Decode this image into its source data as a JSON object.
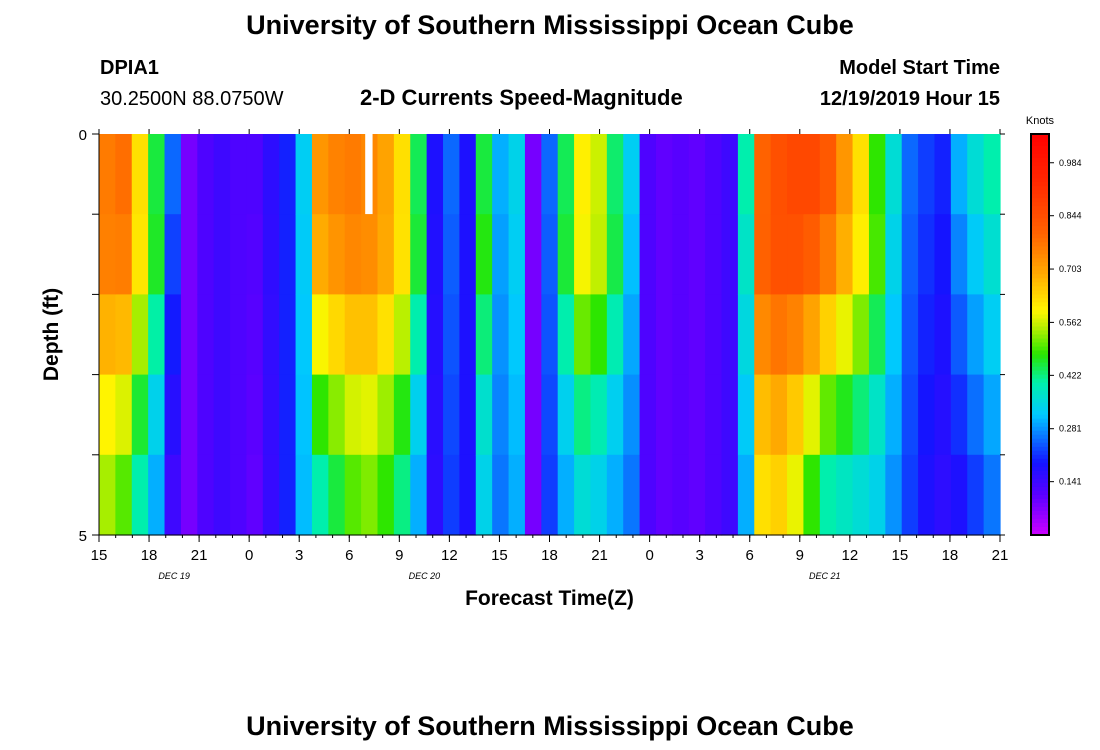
{
  "page": {
    "title_top": "University of Southern Mississippi Ocean Cube",
    "title_bottom": "University of Southern Mississippi Ocean Cube",
    "station_id": "DPIA1",
    "location": "30.2500N 88.0750W",
    "subtitle": "2-D Currents Speed-Magnitude",
    "model_start_label": "Model Start Time",
    "model_start_value": "12/19/2019 Hour 15"
  },
  "chart_data": {
    "type": "heatmap",
    "title": "2-D Currents Speed-Magnitude",
    "xlabel": "Forecast Time(Z)",
    "ylabel": "Depth (ft)",
    "ylim": [
      0,
      5
    ],
    "y_tick_labels": [
      "0",
      "5"
    ],
    "x_tick_labels": [
      "15",
      "18",
      "21",
      "0",
      "3",
      "6",
      "9",
      "12",
      "15",
      "18",
      "21",
      "0",
      "3",
      "6",
      "9",
      "12",
      "15",
      "18",
      "21"
    ],
    "x_day_labels": [
      {
        "label": "DEC 19",
        "after_tick": 1
      },
      {
        "label": "DEC 20",
        "after_tick": 6
      },
      {
        "label": "DEC 21",
        "after_tick": 14
      }
    ],
    "colorbar": {
      "unit": "Knots",
      "range": [
        0.0,
        1.06
      ],
      "tick_values": [
        "0.984",
        "0.844",
        "0.703",
        "0.562",
        "0.422",
        "0.281",
        "0.141"
      ]
    },
    "time_hours_from_start": {
      "start": 0,
      "step": 1,
      "count": 55
    },
    "depth_layers": 5,
    "speed_profile_surface_knots": [
      0.76,
      0.78,
      0.62,
      0.45,
      0.25,
      0.08,
      0.12,
      0.14,
      0.12,
      0.12,
      0.16,
      0.2,
      0.33,
      0.72,
      0.75,
      0.76,
      0.74,
      0.7,
      0.62,
      0.44,
      0.18,
      0.25,
      0.18,
      0.45,
      0.3,
      0.34,
      0.08,
      0.25,
      0.44,
      0.6,
      0.56,
      0.43,
      0.33,
      0.12,
      0.1,
      0.11,
      0.1,
      0.12,
      0.14,
      0.4,
      0.8,
      0.84,
      0.86,
      0.86,
      0.82,
      0.72,
      0.62,
      0.48,
      0.36,
      0.25,
      0.22,
      0.2,
      0.3,
      0.36,
      0.4
    ],
    "speed_profile_bottom_knots": [
      0.54,
      0.5,
      0.4,
      0.3,
      0.14,
      0.08,
      0.12,
      0.14,
      0.12,
      0.1,
      0.15,
      0.2,
      0.31,
      0.4,
      0.45,
      0.5,
      0.52,
      0.48,
      0.42,
      0.3,
      0.16,
      0.22,
      0.18,
      0.34,
      0.26,
      0.3,
      0.08,
      0.22,
      0.3,
      0.36,
      0.34,
      0.3,
      0.26,
      0.12,
      0.1,
      0.11,
      0.1,
      0.12,
      0.14,
      0.3,
      0.62,
      0.64,
      0.58,
      0.48,
      0.4,
      0.38,
      0.36,
      0.34,
      0.28,
      0.22,
      0.18,
      0.16,
      0.18,
      0.22,
      0.26
    ],
    "missing_value_cell": {
      "hour": 16,
      "layer": 0
    }
  }
}
